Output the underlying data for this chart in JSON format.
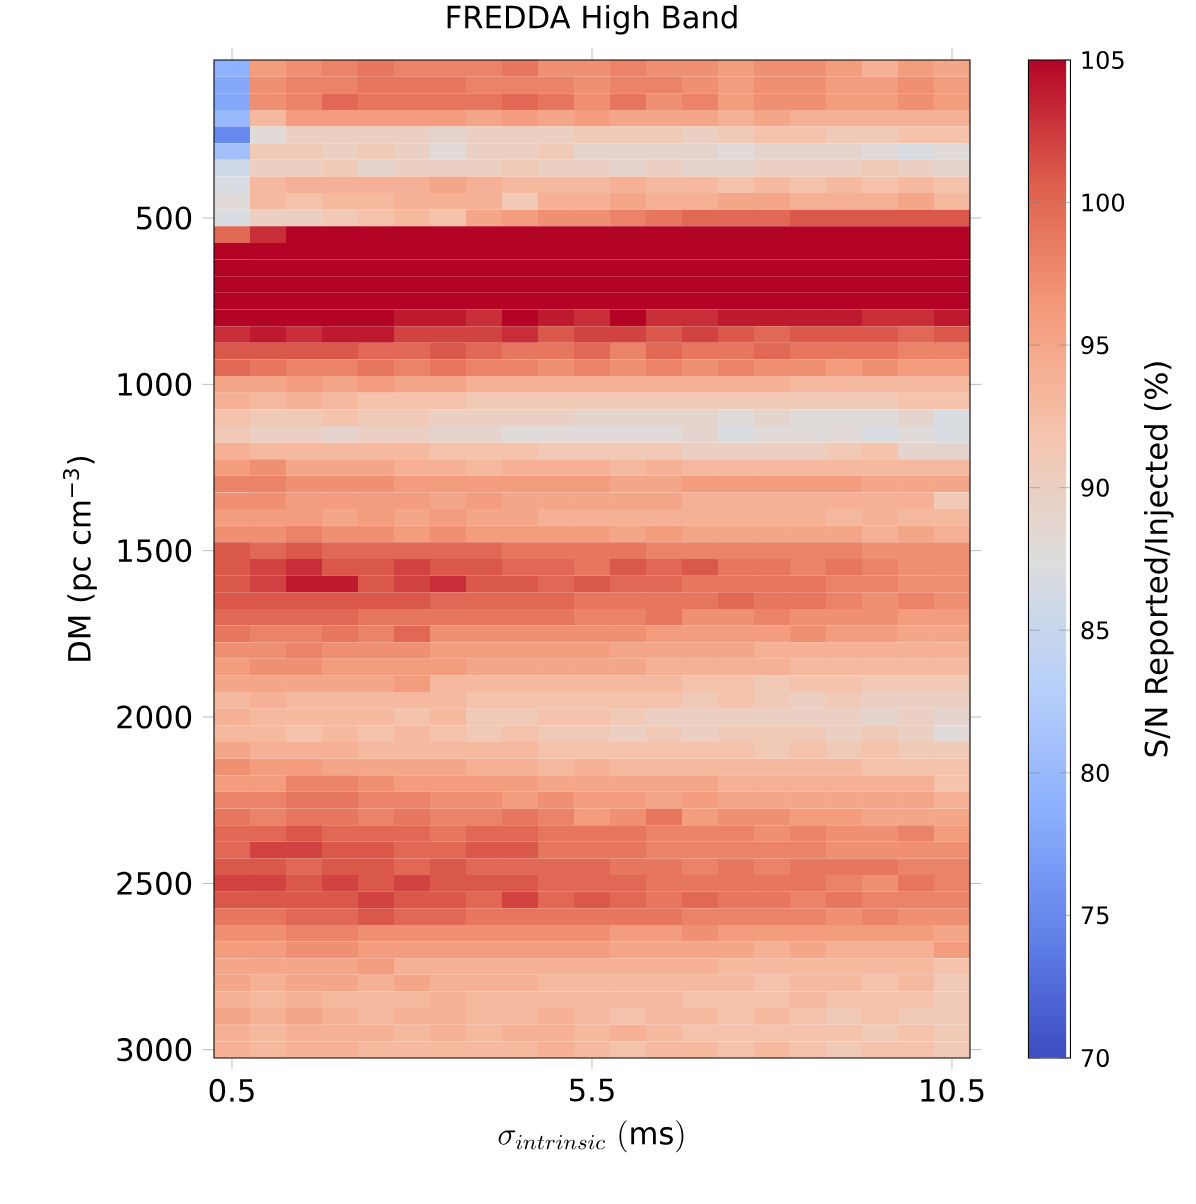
{
  "chart_data": {
    "type": "heatmap",
    "title": "FREDDA High Band",
    "xlabel": "\\sigma_{intrinsic}\\ \\mathrm{(ms)}",
    "ylabel": "DM (pc cm$^{−3}$)",
    "clabel": "S/N Reported/Injected (%)",
    "categories": [
      "0.5",
      null,
      null,
      null,
      null,
      null,
      null,
      null,
      null,
      null,
      "5.5",
      null,
      null,
      null,
      null,
      null,
      null,
      null,
      null,
      null,
      "10.5"
    ],
    "y_categories": [
      null,
      null,
      null,
      null,
      null,
      null,
      null,
      null,
      null,
      "500",
      null,
      null,
      null,
      null,
      null,
      null,
      null,
      null,
      null,
      "1000",
      null,
      null,
      null,
      null,
      null,
      null,
      null,
      null,
      null,
      "1500",
      null,
      null,
      null,
      null,
      null,
      null,
      null,
      null,
      null,
      "2000",
      null,
      null,
      null,
      null,
      null,
      null,
      null,
      null,
      null,
      "2500",
      null,
      null,
      null,
      null,
      null,
      null,
      null,
      null,
      null,
      "3000"
    ],
    "clim": [
      70,
      105
    ],
    "cticks": [
      70,
      75,
      80,
      85,
      90,
      95,
      100,
      105
    ],
    "cells": [
      [
        79,
        96,
        97,
        98,
        99,
        98,
        98,
        98,
        99,
        97,
        97,
        98,
        97,
        97,
        96,
        97,
        97,
        96,
        94,
        96,
        95
      ],
      [
        78,
        97,
        98,
        98,
        99,
        99,
        99,
        98,
        98,
        98,
        97,
        98,
        98,
        97,
        96,
        97,
        97,
        96,
        96,
        97,
        96
      ],
      [
        78,
        97,
        98,
        100,
        99,
        99,
        99,
        99,
        100,
        99,
        97,
        99,
        97,
        98,
        96,
        97,
        97,
        96,
        96,
        97,
        96
      ],
      [
        80,
        93,
        96,
        96,
        96,
        96,
        96,
        95,
        96,
        95,
        96,
        95,
        95,
        95,
        94,
        95,
        94,
        94,
        94,
        94,
        94
      ],
      [
        75,
        88,
        90,
        90,
        90,
        90,
        89,
        90,
        90,
        90,
        91,
        91,
        91,
        90,
        91,
        92,
        92,
        91,
        91,
        92,
        92
      ],
      [
        81,
        91,
        91,
        90,
        91,
        90,
        88,
        90,
        90,
        91,
        89,
        89,
        89,
        89,
        88,
        89,
        89,
        89,
        88,
        87,
        88
      ],
      [
        86,
        90,
        90,
        91,
        89,
        90,
        90,
        90,
        91,
        90,
        90,
        89,
        90,
        89,
        89,
        90,
        90,
        90,
        91,
        90,
        89
      ],
      [
        87,
        93,
        94,
        94,
        94,
        94,
        95,
        94,
        93,
        93,
        93,
        94,
        93,
        93,
        92,
        93,
        92,
        93,
        92,
        93,
        92
      ],
      [
        88,
        93,
        92,
        93,
        93,
        94,
        94,
        94,
        91,
        94,
        94,
        95,
        94,
        94,
        95,
        95,
        94,
        94,
        94,
        95,
        93
      ],
      [
        87,
        90,
        90,
        91,
        92,
        93,
        92,
        95,
        96,
        97,
        97,
        98,
        99,
        100,
        100,
        100,
        101,
        101,
        101,
        101,
        101
      ],
      [
        100,
        103,
        105,
        105,
        105,
        105,
        105,
        105,
        105,
        105,
        105,
        105,
        105,
        105,
        105,
        105,
        105,
        105,
        105,
        105,
        105
      ],
      [
        105,
        105,
        105,
        105,
        105,
        105,
        105,
        105,
        105,
        105,
        105,
        105,
        105,
        105,
        105,
        105,
        105,
        105,
        105,
        105,
        105
      ],
      [
        105,
        105,
        105,
        105,
        105,
        105,
        105,
        105,
        105,
        105,
        105,
        105,
        105,
        105,
        105,
        105,
        105,
        105,
        105,
        105,
        105
      ],
      [
        105,
        105,
        105,
        105,
        105,
        105,
        105,
        105,
        105,
        105,
        105,
        105,
        105,
        105,
        105,
        105,
        105,
        105,
        105,
        105,
        105
      ],
      [
        105,
        105,
        105,
        105,
        105,
        105,
        105,
        105,
        105,
        105,
        105,
        105,
        105,
        105,
        105,
        105,
        105,
        105,
        105,
        105,
        105
      ],
      [
        105,
        105,
        105,
        105,
        105,
        104,
        104,
        103,
        105,
        104,
        103,
        105,
        103,
        103,
        104,
        104,
        104,
        104,
        103,
        103,
        104
      ],
      [
        103,
        104,
        103,
        104,
        104,
        102,
        102,
        102,
        103,
        101,
        102,
        102,
        101,
        102,
        101,
        100,
        101,
        101,
        101,
        100,
        101
      ],
      [
        101,
        101,
        101,
        101,
        100,
        100,
        101,
        100,
        99,
        99,
        100,
        98,
        100,
        99,
        99,
        100,
        99,
        99,
        99,
        98,
        98
      ],
      [
        100,
        99,
        98,
        98,
        99,
        98,
        99,
        98,
        98,
        97,
        98,
        97,
        98,
        97,
        98,
        97,
        97,
        96,
        97,
        96,
        96
      ],
      [
        95,
        95,
        96,
        95,
        96,
        95,
        95,
        94,
        94,
        94,
        94,
        94,
        94,
        94,
        94,
        94,
        93,
        93,
        93,
        93,
        93
      ],
      [
        94,
        93,
        94,
        93,
        92,
        92,
        92,
        91,
        91,
        91,
        91,
        91,
        91,
        91,
        91,
        91,
        91,
        91,
        91,
        92,
        92
      ],
      [
        92,
        91,
        91,
        92,
        91,
        91,
        90,
        90,
        90,
        90,
        89,
        89,
        89,
        89,
        88,
        89,
        88,
        88,
        88,
        89,
        87
      ],
      [
        91,
        90,
        90,
        89,
        90,
        90,
        89,
        89,
        88,
        88,
        88,
        88,
        88,
        89,
        87,
        88,
        88,
        88,
        87,
        88,
        87
      ],
      [
        94,
        93,
        93,
        93,
        93,
        93,
        92,
        92,
        92,
        91,
        91,
        91,
        91,
        90,
        90,
        90,
        90,
        91,
        92,
        89,
        89
      ],
      [
        96,
        97,
        95,
        95,
        95,
        94,
        94,
        93,
        94,
        94,
        94,
        93,
        94,
        93,
        93,
        93,
        93,
        93,
        93,
        93,
        93
      ],
      [
        98,
        98,
        97,
        97,
        97,
        96,
        96,
        96,
        96,
        96,
        96,
        95,
        95,
        96,
        96,
        96,
        96,
        96,
        95,
        95,
        95
      ],
      [
        97,
        97,
        96,
        96,
        96,
        96,
        95,
        96,
        95,
        95,
        95,
        95,
        95,
        94,
        94,
        94,
        94,
        94,
        94,
        94,
        91
      ],
      [
        96,
        96,
        96,
        95,
        96,
        95,
        96,
        95,
        95,
        94,
        94,
        94,
        94,
        94,
        94,
        94,
        94,
        93,
        94,
        93,
        93
      ],
      [
        97,
        97,
        98,
        97,
        97,
        96,
        97,
        96,
        96,
        96,
        96,
        95,
        96,
        95,
        95,
        95,
        95,
        95,
        94,
        95,
        94
      ],
      [
        101,
        100,
        101,
        100,
        100,
        100,
        100,
        100,
        99,
        99,
        99,
        99,
        98,
        98,
        98,
        98,
        98,
        98,
        97,
        97,
        97
      ],
      [
        101,
        102,
        103,
        101,
        101,
        102,
        101,
        101,
        100,
        100,
        99,
        101,
        100,
        101,
        99,
        99,
        98,
        99,
        98,
        97,
        97
      ],
      [
        101,
        102,
        104,
        104,
        101,
        102,
        103,
        101,
        101,
        100,
        101,
        100,
        100,
        99,
        99,
        99,
        99,
        98,
        98,
        97,
        97
      ],
      [
        101,
        101,
        101,
        101,
        101,
        101,
        100,
        100,
        100,
        100,
        99,
        99,
        99,
        99,
        100,
        99,
        99,
        98,
        97,
        98,
        97
      ],
      [
        100,
        100,
        100,
        100,
        99,
        99,
        99,
        99,
        99,
        99,
        98,
        98,
        99,
        97,
        97,
        98,
        97,
        97,
        97,
        96,
        96
      ],
      [
        99,
        98,
        98,
        99,
        98,
        100,
        97,
        97,
        97,
        97,
        97,
        97,
        96,
        96,
        96,
        96,
        97,
        96,
        96,
        95,
        95
      ],
      [
        97,
        97,
        98,
        97,
        97,
        97,
        96,
        96,
        96,
        96,
        96,
        95,
        95,
        95,
        95,
        94,
        94,
        94,
        94,
        94,
        94
      ],
      [
        96,
        97,
        97,
        96,
        96,
        96,
        96,
        95,
        95,
        95,
        95,
        95,
        94,
        94,
        94,
        94,
        93,
        93,
        93,
        93,
        93
      ],
      [
        95,
        95,
        95,
        95,
        95,
        96,
        93,
        93,
        93,
        93,
        93,
        93,
        93,
        92,
        92,
        91,
        92,
        92,
        91,
        91,
        91
      ],
      [
        93,
        94,
        93,
        93,
        93,
        93,
        93,
        92,
        92,
        92,
        92,
        92,
        92,
        91,
        92,
        91,
        90,
        91,
        90,
        90,
        90
      ],
      [
        94,
        93,
        93,
        93,
        93,
        92,
        93,
        91,
        91,
        92,
        92,
        91,
        90,
        90,
        90,
        90,
        90,
        90,
        89,
        90,
        89
      ],
      [
        93,
        93,
        92,
        93,
        92,
        93,
        92,
        91,
        92,
        91,
        91,
        90,
        91,
        90,
        91,
        91,
        91,
        90,
        91,
        90,
        88
      ],
      [
        95,
        94,
        94,
        94,
        93,
        93,
        93,
        93,
        93,
        92,
        92,
        92,
        92,
        92,
        92,
        91,
        92,
        91,
        92,
        91,
        91
      ],
      [
        97,
        96,
        96,
        95,
        95,
        95,
        95,
        94,
        94,
        93,
        94,
        93,
        93,
        93,
        93,
        93,
        93,
        93,
        92,
        92,
        92
      ],
      [
        96,
        96,
        98,
        98,
        97,
        96,
        96,
        96,
        96,
        95,
        95,
        95,
        95,
        95,
        94,
        94,
        94,
        94,
        94,
        94,
        92
      ],
      [
        98,
        98,
        99,
        99,
        98,
        98,
        97,
        97,
        96,
        97,
        96,
        96,
        95,
        96,
        95,
        95,
        95,
        95,
        95,
        95,
        94
      ],
      [
        99,
        98,
        99,
        99,
        98,
        99,
        98,
        98,
        99,
        98,
        96,
        97,
        99,
        96,
        97,
        97,
        96,
        96,
        95,
        95,
        95
      ],
      [
        100,
        100,
        101,
        100,
        100,
        100,
        99,
        100,
        100,
        99,
        99,
        99,
        98,
        98,
        98,
        97,
        98,
        97,
        97,
        98,
        96
      ],
      [
        100,
        102,
        102,
        101,
        101,
        100,
        100,
        101,
        101,
        99,
        99,
        99,
        98,
        98,
        98,
        98,
        98,
        97,
        97,
        97,
        97
      ],
      [
        101,
        101,
        100,
        101,
        101,
        100,
        101,
        100,
        100,
        100,
        100,
        99,
        99,
        98,
        99,
        98,
        99,
        99,
        99,
        98,
        98
      ],
      [
        102,
        102,
        101,
        102,
        101,
        102,
        101,
        101,
        101,
        100,
        100,
        100,
        99,
        99,
        99,
        99,
        99,
        98,
        97,
        99,
        98
      ],
      [
        101,
        101,
        101,
        101,
        102,
        101,
        101,
        100,
        102,
        100,
        101,
        100,
        99,
        100,
        99,
        99,
        98,
        99,
        98,
        98,
        98
      ],
      [
        99,
        99,
        100,
        100,
        101,
        100,
        100,
        99,
        99,
        99,
        99,
        99,
        99,
        98,
        98,
        98,
        98,
        97,
        98,
        97,
        97
      ],
      [
        97,
        97,
        98,
        98,
        97,
        97,
        97,
        97,
        97,
        97,
        97,
        96,
        96,
        97,
        96,
        96,
        96,
        96,
        96,
        96,
        95
      ],
      [
        96,
        96,
        97,
        97,
        96,
        96,
        96,
        96,
        96,
        96,
        96,
        95,
        95,
        95,
        95,
        94,
        95,
        94,
        94,
        94,
        96
      ],
      [
        95,
        95,
        95,
        95,
        96,
        94,
        94,
        94,
        94,
        94,
        94,
        94,
        94,
        94,
        93,
        93,
        93,
        93,
        93,
        93,
        92
      ],
      [
        95,
        94,
        95,
        95,
        94,
        95,
        94,
        94,
        94,
        93,
        93,
        93,
        93,
        93,
        93,
        92,
        93,
        93,
        92,
        93,
        91
      ],
      [
        94,
        93,
        94,
        93,
        93,
        93,
        94,
        93,
        93,
        93,
        93,
        93,
        93,
        92,
        92,
        92,
        93,
        92,
        92,
        92,
        91
      ],
      [
        95,
        94,
        95,
        94,
        93,
        94,
        94,
        93,
        93,
        94,
        93,
        92,
        93,
        93,
        92,
        93,
        92,
        91,
        92,
        91,
        91
      ],
      [
        94,
        93,
        94,
        94,
        94,
        93,
        94,
        93,
        94,
        94,
        93,
        94,
        93,
        92,
        92,
        92,
        92,
        92,
        91,
        92,
        91
      ],
      [
        94,
        93,
        94,
        94,
        93,
        93,
        93,
        93,
        93,
        94,
        93,
        92,
        93,
        93,
        92,
        93,
        92,
        91,
        92,
        92,
        91
      ]
    ]
  }
}
